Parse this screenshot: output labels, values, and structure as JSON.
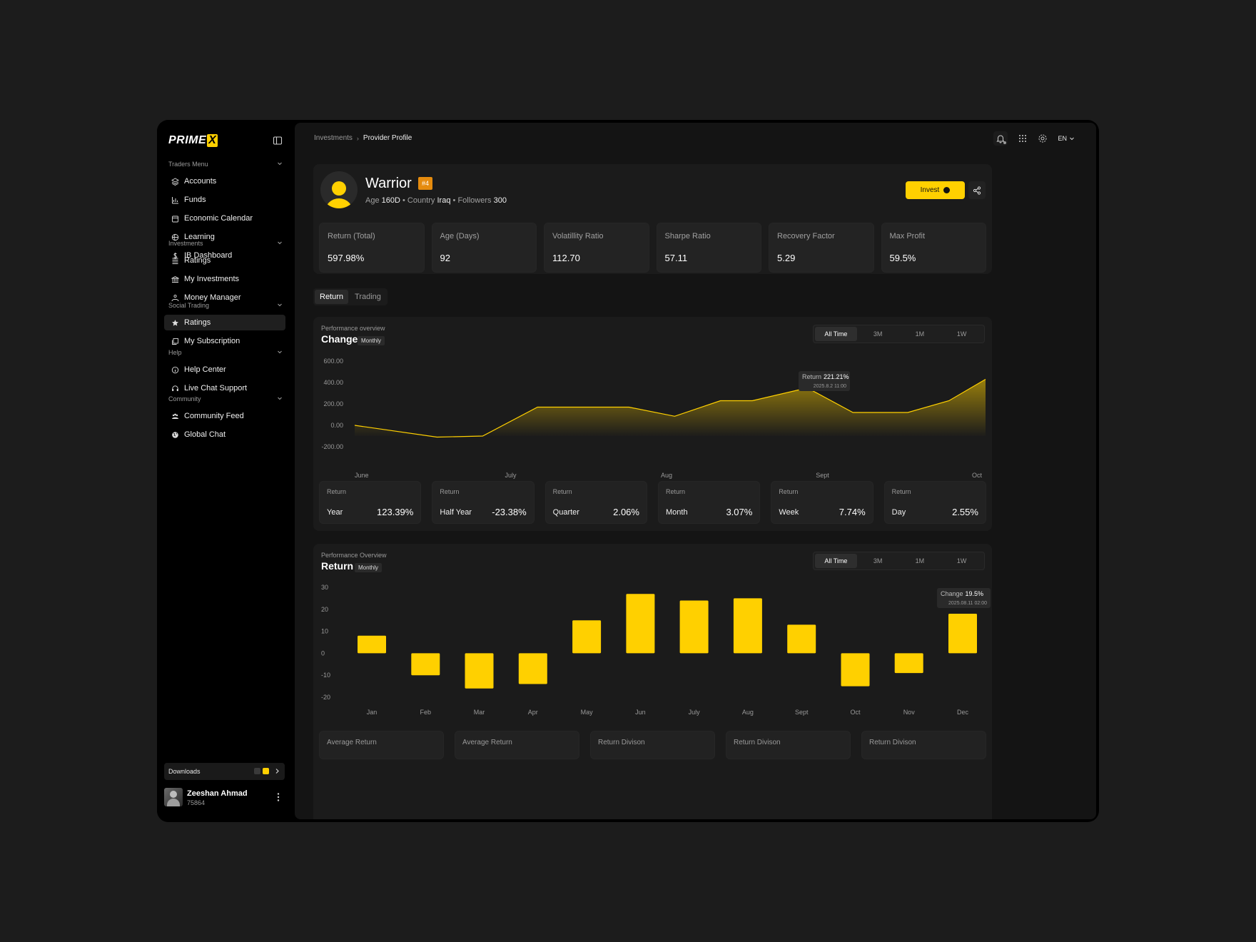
{
  "brand": {
    "logo_main": "PRIME",
    "logo_x": "X",
    "accent": "#ffd000"
  },
  "sidebar": {
    "sections": [
      {
        "title": "Traders Menu",
        "items": [
          {
            "label": "Accounts",
            "icon": "layers-icon"
          },
          {
            "label": "Funds",
            "icon": "bar-chart-icon"
          },
          {
            "label": "Economic Calendar",
            "icon": "calendar-icon"
          },
          {
            "label": "Learning",
            "icon": "globe-icon"
          },
          {
            "label": "IB Dashboard",
            "icon": "dollar-icon"
          }
        ]
      },
      {
        "title": "Investments",
        "items": [
          {
            "label": "Ratings",
            "icon": "list-icon"
          },
          {
            "label": "My Investments",
            "icon": "bank-icon"
          },
          {
            "label": "Money Manager",
            "icon": "users-icon"
          }
        ]
      },
      {
        "title": "Social Trading",
        "items": [
          {
            "label": "Ratings",
            "icon": "star-icon",
            "active": true
          },
          {
            "label": "My Subscription",
            "icon": "stack-icon"
          }
        ]
      },
      {
        "title": "Help",
        "items": [
          {
            "label": "Help Center",
            "icon": "info-icon"
          },
          {
            "label": "Live Chat Support",
            "icon": "headset-icon"
          }
        ]
      },
      {
        "title": "Community",
        "items": [
          {
            "label": "Community Feed",
            "icon": "group-icon"
          },
          {
            "label": "Global Chat",
            "icon": "world-icon"
          }
        ]
      }
    ],
    "downloads_label": "Downloads",
    "user": {
      "name": "Zeeshan Ahmad",
      "id": "75864"
    }
  },
  "topbar": {
    "breadcrumb": [
      "Investments",
      "Provider Profile"
    ],
    "language": "EN"
  },
  "profile": {
    "name": "Warrior",
    "rank": "#4",
    "age_label": "Age",
    "age_value": "160D",
    "country_label": "Country",
    "country_value": "Iraq",
    "followers_label": "Followers",
    "followers_value": "300",
    "invest_label": "Invest",
    "stats": [
      {
        "label": "Return (Total)",
        "value": "597.98%"
      },
      {
        "label": "Age (Days)",
        "value": "92"
      },
      {
        "label": "Volatillity Ratio",
        "value": "112.70"
      },
      {
        "label": "Sharpe Ratio",
        "value": "57.11"
      },
      {
        "label": "Recovery Factor",
        "value": "5.29"
      },
      {
        "label": "Max Profit",
        "value": "59.5%"
      }
    ]
  },
  "tabs": [
    {
      "label": "Return",
      "active": true
    },
    {
      "label": "Trading",
      "active": false
    }
  ],
  "change_panel": {
    "overline": "Performance overview",
    "title": "Change",
    "pill": "Monthly",
    "ranges": [
      "All Time",
      "3M",
      "1M",
      "1W"
    ],
    "tooltip": {
      "label": "Return",
      "value": "221.21%",
      "date": "2025.8.2  11:00"
    },
    "return_cards": [
      {
        "label": "Return",
        "period": "Year",
        "value": "123.39%"
      },
      {
        "label": "Return",
        "period": "Half Year",
        "value": "-23.38%"
      },
      {
        "label": "Return",
        "period": "Quarter",
        "value": "2.06%"
      },
      {
        "label": "Return",
        "period": "Month",
        "value": "3.07%"
      },
      {
        "label": "Return",
        "period": "Week",
        "value": "7.74%"
      },
      {
        "label": "Return",
        "period": "Day",
        "value": "2.55%"
      }
    ]
  },
  "return_panel": {
    "overline": "Performance Overview",
    "title": "Return",
    "pill": "Monthly",
    "ranges": [
      "All Time",
      "3M",
      "1M",
      "1W"
    ],
    "tooltip": {
      "label": "Change",
      "value": "19.5%",
      "date": "2025.08.11  02:00"
    },
    "bottom_cards": [
      "Average Return",
      "Average Return",
      "Return Divison",
      "Return Divison",
      "Return Divison"
    ]
  },
  "chart_data": [
    {
      "type": "area",
      "title": "Change",
      "x_tick_labels": [
        "June",
        "July",
        "Aug",
        "Sept",
        "Oct"
      ],
      "y_tick_labels": [
        "600.00",
        "400.00",
        "200.00",
        "0.00",
        "-200.00"
      ],
      "ylim": [
        -200,
        600
      ],
      "x": [
        0,
        0.9,
        1.4,
        2,
        2.4,
        3,
        3.5,
        4,
        4.35,
        4.95,
        5.45,
        6.05,
        6.5,
        6.9
      ],
      "values": [
        0,
        -110,
        -100,
        170,
        170,
        170,
        85,
        230,
        230,
        350,
        120,
        120,
        230,
        430
      ],
      "series_color": "#ffd000",
      "grid": false
    },
    {
      "type": "bar",
      "title": "Return",
      "categories": [
        "Jan",
        "Feb",
        "Mar",
        "Apr",
        "May",
        "Jun",
        "July",
        "Aug",
        "Sept",
        "Oct",
        "Nov",
        "Dec"
      ],
      "values": [
        8,
        -10,
        -16,
        -14,
        15,
        27,
        24,
        25,
        13,
        -15,
        -9,
        18
      ],
      "y_tick_labels": [
        "30",
        "20",
        "10",
        "0",
        "-10",
        "-20"
      ],
      "ylim": [
        -20,
        30
      ],
      "series_color": "#ffd000",
      "grid": false
    }
  ]
}
